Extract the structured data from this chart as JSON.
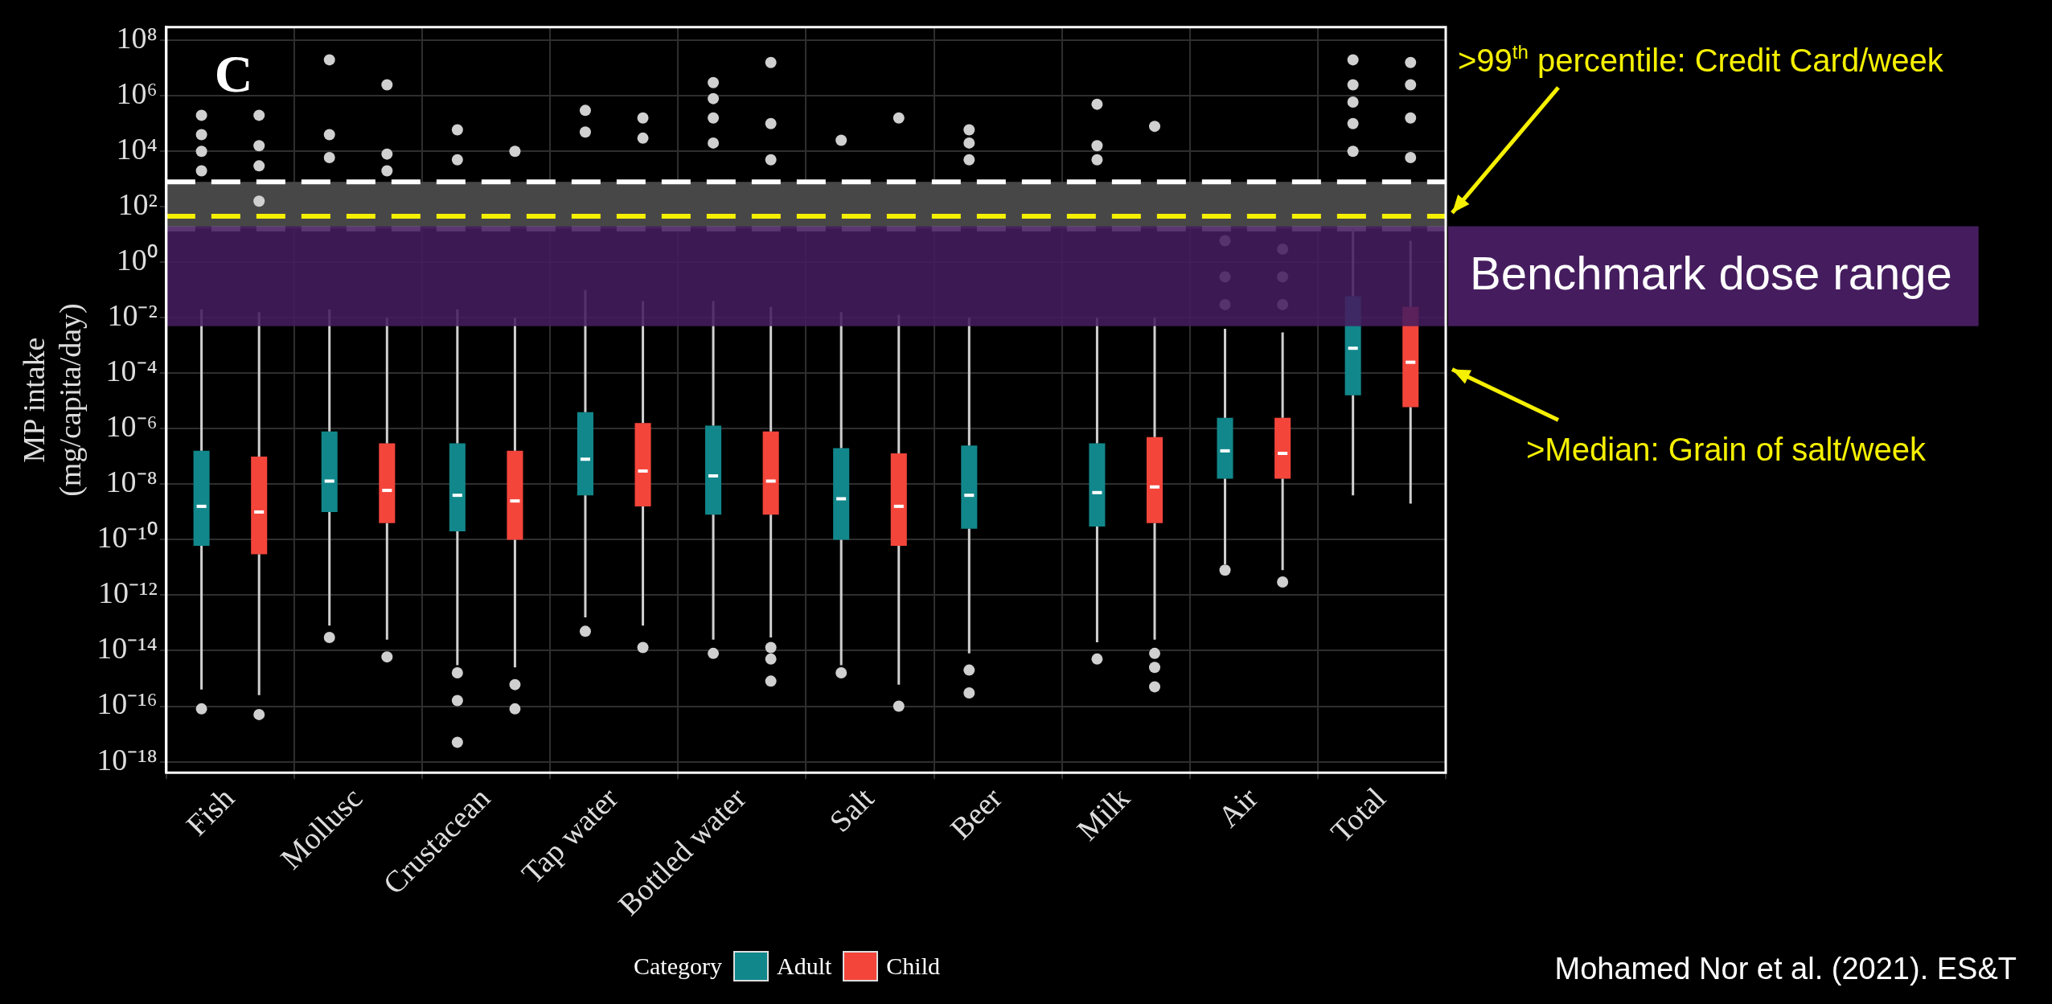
{
  "chart_data": {
    "type": "box",
    "ylabel": "MP intake\n(mg/capita/day)",
    "legend_title": "Category",
    "legend": "bottom",
    "grid": true,
    "log": true,
    "categories": [
      "Fish",
      "Mollusc",
      "Crustacean",
      "Tap water",
      "Bottled water",
      "Salt",
      "Beer",
      "Milk",
      "Air",
      "Total"
    ],
    "ylim": [
      4e-19,
      300000000.0
    ],
    "yticks": [
      {
        "value": 100000000.0,
        "label": "10⁸"
      },
      {
        "value": 1000000.0,
        "label": "10⁶"
      },
      {
        "value": 10000.0,
        "label": "10⁴"
      },
      {
        "value": 100,
        "label": "10²"
      },
      {
        "value": 1,
        "label": "10⁰"
      },
      {
        "value": 0.01,
        "label": "10⁻²"
      },
      {
        "value": 0.0001,
        "label": "10⁻⁴"
      },
      {
        "value": 1e-06,
        "label": "10⁻⁶"
      },
      {
        "value": 1e-08,
        "label": "10⁻⁸"
      },
      {
        "value": 1e-10,
        "label": "10⁻¹⁰"
      },
      {
        "value": 1e-12,
        "label": "10⁻¹²"
      },
      {
        "value": 1e-14,
        "label": "10⁻¹⁴"
      },
      {
        "value": 1e-16,
        "label": "10⁻¹⁶"
      },
      {
        "value": 1e-18,
        "label": "10⁻¹⁸"
      }
    ],
    "series": [
      {
        "name": "Adult",
        "color": "#11878b",
        "boxes": [
          {
            "low": 4e-16,
            "q1": 6e-11,
            "median": 1.6e-09,
            "q3": 1.6e-07,
            "high": 0.02,
            "outliers": [
              8e-17,
              2000,
              10000.0,
              40000.0,
              200000.0
            ]
          },
          {
            "low": 8e-14,
            "q1": 1e-09,
            "median": 1.3e-08,
            "q3": 8e-07,
            "high": 0.02,
            "outliers": [
              3e-14,
              6000,
              40000.0,
              20000000.0
            ]
          },
          {
            "low": 3e-15,
            "q1": 2e-10,
            "median": 4e-09,
            "q3": 3e-07,
            "high": 0.02,
            "outliers": [
              1.6e-15,
              1.6e-16,
              5e-18,
              5000,
              60000.0
            ]
          },
          {
            "low": 1.6e-13,
            "q1": 4e-09,
            "median": 8e-08,
            "q3": 4e-06,
            "high": 0.1,
            "outliers": [
              5e-14,
              50000.0,
              300000.0
            ]
          },
          {
            "low": 2.5e-14,
            "q1": 8e-10,
            "median": 2e-08,
            "q3": 1.3e-06,
            "high": 0.04,
            "outliers": [
              8e-15,
              20000.0,
              160000.0,
              800000.0,
              3000000.0
            ]
          },
          {
            "low": 3e-15,
            "q1": 1e-10,
            "median": 3e-09,
            "q3": 2e-07,
            "high": 0.016,
            "outliers": [
              1.6e-15,
              25000.0
            ]
          },
          {
            "low": 8e-15,
            "q1": 2.5e-10,
            "median": 4e-09,
            "q3": 2.5e-07,
            "high": 0.01,
            "outliers": [
              2e-15,
              3e-16,
              5000,
              20000.0,
              60000.0
            ]
          },
          {
            "low": 2e-14,
            "q1": 3e-10,
            "median": 5e-09,
            "q3": 3e-07,
            "high": 0.01,
            "outliers": [
              5e-15,
              5000,
              16000.0,
              500000.0
            ]
          },
          {
            "low": 1.3e-11,
            "q1": 1.6e-08,
            "median": 1.6e-07,
            "q3": 2.5e-06,
            "high": 0.004,
            "outliers": [
              8e-12,
              0.03,
              0.3,
              6
            ]
          },
          {
            "low": 4e-09,
            "q1": 1.6e-05,
            "median": 0.0008,
            "q3": 0.06,
            "high": 16,
            "outliers": [
              10000.0,
              100000.0,
              600000.0,
              2500000.0,
              20000000.0
            ]
          }
        ]
      },
      {
        "name": "Child",
        "color": "#f4453b",
        "boxes": [
          {
            "low": 2.5e-16,
            "q1": 3e-11,
            "median": 1e-09,
            "q3": 1e-07,
            "high": 0.016,
            "outliers": [
              5e-17,
              160,
              3000,
              16000.0,
              200000.0
            ]
          },
          {
            "low": 2.5e-14,
            "q1": 4e-10,
            "median": 6e-09,
            "q3": 3e-07,
            "high": 0.01,
            "outliers": [
              6e-15,
              2000,
              8000,
              2500000.0
            ]
          },
          {
            "low": 2.5e-15,
            "q1": 1e-10,
            "median": 2.5e-09,
            "q3": 1.6e-07,
            "high": 0.01,
            "outliers": [
              6e-16,
              8e-17,
              10000.0
            ]
          },
          {
            "low": 8e-14,
            "q1": 1.6e-09,
            "median": 3e-08,
            "q3": 1.6e-06,
            "high": 0.04,
            "outliers": [
              1.3e-14,
              30000.0,
              160000.0
            ]
          },
          {
            "low": 3e-14,
            "q1": 8e-10,
            "median": 1.3e-08,
            "q3": 8e-07,
            "high": 0.025,
            "outliers": [
              1.3e-14,
              5e-15,
              8e-16,
              5000,
              100000.0,
              16000000.0
            ]
          },
          {
            "low": 6e-16,
            "q1": 6e-11,
            "median": 1.6e-09,
            "q3": 1.3e-07,
            "high": 0.013,
            "outliers": [
              1e-16,
              160000.0
            ]
          },
          null,
          {
            "low": 2.5e-14,
            "q1": 4e-10,
            "median": 8e-09,
            "q3": 5e-07,
            "high": 0.01,
            "outliers": [
              8e-15,
              2.5e-15,
              5e-16,
              80000.0
            ]
          },
          {
            "low": 8e-12,
            "q1": 1.6e-08,
            "median": 1.3e-07,
            "q3": 2.5e-06,
            "high": 0.003,
            "outliers": [
              3e-12,
              0.03,
              0.3,
              3
            ]
          },
          {
            "low": 2e-09,
            "q1": 6e-06,
            "median": 0.00025,
            "q3": 0.025,
            "high": 6,
            "outliers": [
              6000,
              160000.0,
              2500000.0,
              16000000.0
            ]
          }
        ]
      }
    ],
    "bands": [
      {
        "axis": "y",
        "from": 16,
        "to": 800,
        "color": "#474747"
      },
      {
        "axis": "y",
        "from": 0.005,
        "to": 20,
        "color": "#451d5e",
        "label": "Benchmark dose range"
      }
    ],
    "ref_lines": [
      {
        "axis": "y",
        "value": 800,
        "color": "#ffffff",
        "line_style": "dashed"
      },
      {
        "axis": "y",
        "value": 16,
        "color": "#ffffff",
        "line_style": "dashed"
      },
      {
        "axis": "y",
        "value": 46,
        "color": "#f5f000",
        "line_style": "dashed",
        "label": ">99$^{th}$ percentile: Credit Card/week"
      }
    ],
    "annotations": [
      "C",
      ">Median: Grain of salt/week",
      "Mohamed Nor et al. (2021). ES&T"
    ]
  }
}
